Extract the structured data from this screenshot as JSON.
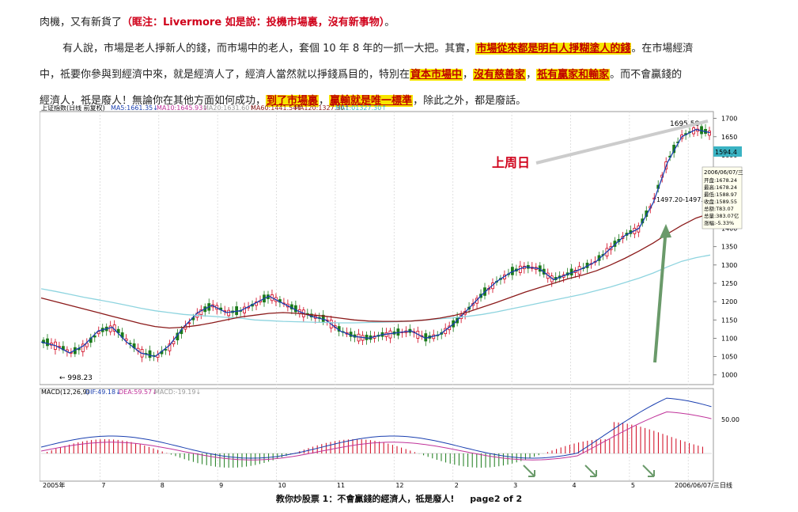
{
  "paragraph": {
    "line0_plain": "肉機，又有新貨了",
    "line0_note": "（眶注：Livermore 如是說：投機市場裏，沒有新事物）",
    "line0_end": "。",
    "line1_plain": "有人說，市場是老人掙新人的錢，而市場中的老人，套個 10 年 8 年的一抓一大把。其實，",
    "line1_hl": "市場從來都是明白人掙糊塗人的錢",
    "line1_end": "。在市場經濟",
    "line2_a": "中，祗要你參與到經濟中來，就是經濟人了，經濟人當然就以掙錢爲目的，特別在",
    "line2_hl1": "資本市場中",
    "line2_sep1": "，",
    "line2_hl2": "沒有慈善家",
    "line2_sep2": "，",
    "line2_hl3": "祇有贏家和輸家",
    "line2_end": "。而不會贏錢的",
    "line3_a": "經濟人，祇是廢人！無論你在其他方面如何成功，",
    "line3_hl1": "到了市場裏",
    "line3_sep": "，",
    "line3_hl2": "贏輸就是唯一標準",
    "line3_end": "，除此之外，都是廢話。"
  },
  "chart_header": {
    "index_name": "上证指数(日线 前复权)",
    "ma5": "MA5:1661.35↓",
    "ma10": "MA10:1645.93↓",
    "ma20": "MA20:1631.60↑",
    "ma60": "MA60:1441.54↑",
    "ma120": "MA120:1327.30↑",
    "ma1": "MA1:01327.30↑"
  },
  "macd_header": {
    "params": "MACD(12,26,9)",
    "dif": "DIF:49.18↓",
    "dea": "DEA:59.57↓",
    "macd": "MACD:-19.19↓"
  },
  "annotations": {
    "last_week": "上周日",
    "high_label": "1695.58",
    "low_label": "← 998.23",
    "range_label": "1497.20-1497.95",
    "current_price": "1594.4",
    "macd_level": "50.00"
  },
  "info_panel": {
    "date": "2006/06/07/三",
    "lines": [
      "开盘:1678.24",
      "最高:1678.24",
      "最低:1588.97",
      "收盘:1589.55",
      "总额:T83.07",
      "总量:383.07亿",
      "涨幅:-5.33%"
    ]
  },
  "x_axis": {
    "labels": [
      "2005年",
      "7",
      "8",
      "9",
      "10",
      "11",
      "12",
      "2",
      "3",
      "4",
      "5",
      "2006/06/07/三"
    ],
    "unit": "日线"
  },
  "chart_data": {
    "type": "line",
    "title": "上证指数(日线 前复权)",
    "yticks": [
      1000,
      1050,
      1100,
      1150,
      1200,
      1250,
      1300,
      1350,
      1400,
      1450,
      1500,
      1550,
      1600,
      1650,
      1700
    ],
    "ylim": [
      980,
      1710
    ],
    "series": [
      {
        "name": "MA5",
        "values": [
          1090,
          1080,
          1060,
          1080,
          1120,
          1130,
          1090,
          1060,
          1050,
          1080,
          1130,
          1170,
          1190,
          1170,
          1175,
          1195,
          1215,
          1195,
          1175,
          1160,
          1150,
          1120,
          1105,
          1100,
          1110,
          1115,
          1120,
          1100,
          1110,
          1140,
          1180,
          1220,
          1255,
          1280,
          1295,
          1290,
          1260,
          1275,
          1290,
          1310,
          1345,
          1380,
          1400,
          1470,
          1580,
          1650,
          1670,
          1661
        ]
      },
      {
        "name": "MA120",
        "values": [
          1235,
          1228,
          1220,
          1212,
          1205,
          1198,
          1190,
          1182,
          1175,
          1170,
          1165,
          1162,
          1160,
          1157,
          1155,
          1150,
          1148,
          1146,
          1145,
          1144,
          1143,
          1142,
          1142,
          1143,
          1144,
          1145,
          1147,
          1150,
          1153,
          1156,
          1160,
          1165,
          1172,
          1180,
          1188,
          1196,
          1204,
          1212,
          1220,
          1230,
          1240,
          1252,
          1264,
          1278,
          1295,
          1310,
          1320,
          1327
        ]
      },
      {
        "name": "MA60",
        "values": [
          1210,
          1200,
          1190,
          1180,
          1170,
          1160,
          1150,
          1140,
          1132,
          1128,
          1130,
          1135,
          1142,
          1150,
          1158,
          1163,
          1168,
          1170,
          1168,
          1164,
          1160,
          1155,
          1150,
          1147,
          1146,
          1146,
          1147,
          1150,
          1155,
          1162,
          1172,
          1185,
          1198,
          1212,
          1226,
          1238,
          1250,
          1262,
          1272,
          1284,
          1300,
          1318,
          1338,
          1360,
          1385,
          1408,
          1428,
          1441
        ]
      }
    ],
    "annotations": [
      "1695.58",
      "998.23",
      "1497.20-1497.95",
      "上周日"
    ]
  },
  "footer": {
    "title": "教你炒股票 1：不會贏錢的經濟人，祗是廢人!",
    "page": "page2 of 2"
  }
}
